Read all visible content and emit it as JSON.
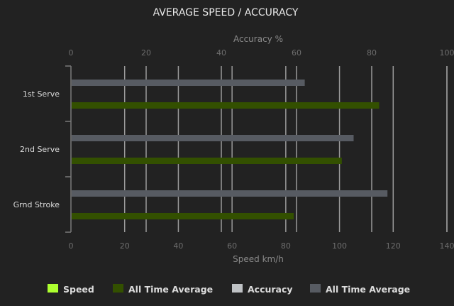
{
  "chart_data": {
    "type": "bar",
    "orientation": "horizontal",
    "title": "AVERAGE SPEED / ACCURACY",
    "categories": [
      "1st Serve",
      "2nd Serve",
      "Grnd Stroke"
    ],
    "x_top": {
      "label": "Accuracy %",
      "range": [
        0,
        100
      ],
      "ticks": [
        0,
        20,
        40,
        60,
        80,
        100
      ]
    },
    "x_bottom": {
      "label": "Speed km/h",
      "range": [
        0,
        140
      ],
      "ticks": [
        0,
        20,
        40,
        60,
        80,
        100,
        120,
        140
      ]
    },
    "grid": true,
    "legend_position": "bottom",
    "series": [
      {
        "name": "Speed",
        "axis": "speed",
        "color": "#adff2f",
        "values": [
          0,
          0,
          0
        ]
      },
      {
        "name": "All Time Average",
        "axis": "speed",
        "color": "#335000",
        "values": [
          114.5,
          100.6,
          82.7
        ]
      },
      {
        "name": "Accuracy",
        "axis": "accuracy",
        "color": "#bfc2c5",
        "values": [
          0,
          0,
          0
        ]
      },
      {
        "name": "All Time Average",
        "axis": "accuracy",
        "color": "#575b62",
        "values": [
          62,
          75,
          84
        ]
      }
    ]
  }
}
